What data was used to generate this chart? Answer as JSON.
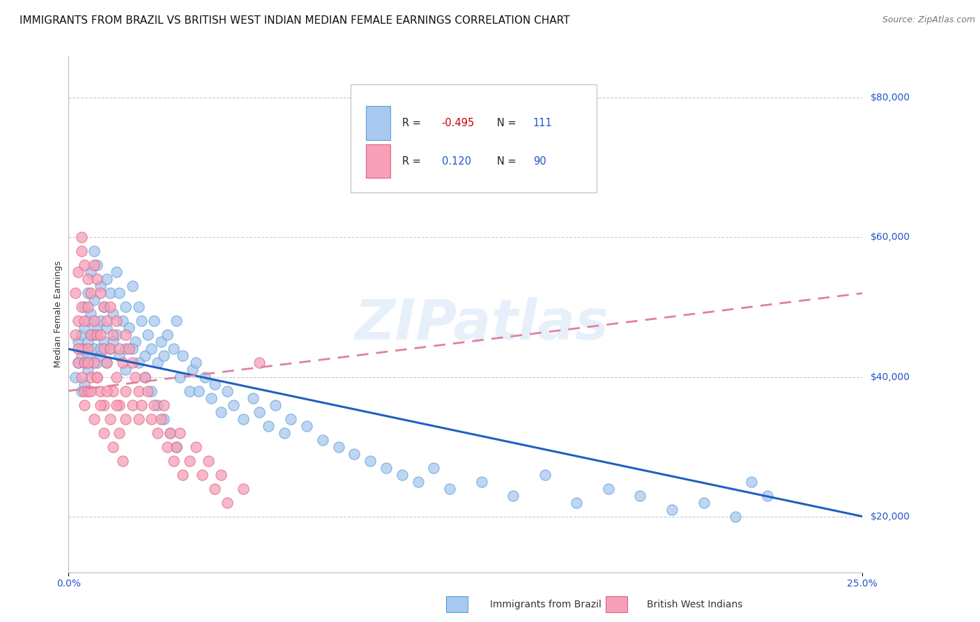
{
  "title": "IMMIGRANTS FROM BRAZIL VS BRITISH WEST INDIAN MEDIAN FEMALE EARNINGS CORRELATION CHART",
  "source": "Source: ZipAtlas.com",
  "ylabel": "Median Female Earnings",
  "y_ticks": [
    20000,
    40000,
    60000,
    80000
  ],
  "y_labels": [
    "$20,000",
    "$40,000",
    "$60,000",
    "$80,000"
  ],
  "xmin": 0.0,
  "xmax": 0.25,
  "ymin": 12000,
  "ymax": 86000,
  "brazil_color": "#a8c8f0",
  "brazil_edge_color": "#5a9fd4",
  "bwi_color": "#f5a0b8",
  "bwi_edge_color": "#e06080",
  "brazil_line_color": "#2060c0",
  "bwi_line_color": "#e080a0",
  "brazil_R": -0.495,
  "brazil_N": 111,
  "bwi_R": 0.12,
  "bwi_N": 90,
  "brazil_label": "Immigrants from Brazil",
  "bwi_label": "British West Indians",
  "watermark_text": "ZIPatlas",
  "title_fontsize": 11,
  "source_fontsize": 9,
  "axis_label_fontsize": 9,
  "tick_fontsize": 10,
  "background_color": "#ffffff",
  "grid_color": "#c8c8d8",
  "brazil_trend_x0": 0.0,
  "brazil_trend_x1": 0.25,
  "brazil_trend_y0": 44000,
  "brazil_trend_y1": 20000,
  "bwi_trend_x0": 0.0,
  "bwi_trend_x1": 0.25,
  "bwi_trend_y0": 38000,
  "bwi_trend_y1": 52000,
  "brazil_scatter_x": [
    0.002,
    0.003,
    0.003,
    0.004,
    0.004,
    0.004,
    0.005,
    0.005,
    0.005,
    0.005,
    0.005,
    0.006,
    0.006,
    0.006,
    0.006,
    0.007,
    0.007,
    0.007,
    0.007,
    0.008,
    0.008,
    0.008,
    0.009,
    0.009,
    0.009,
    0.01,
    0.01,
    0.01,
    0.011,
    0.011,
    0.012,
    0.012,
    0.013,
    0.013,
    0.014,
    0.015,
    0.015,
    0.016,
    0.017,
    0.018,
    0.018,
    0.019,
    0.02,
    0.021,
    0.022,
    0.023,
    0.024,
    0.025,
    0.026,
    0.027,
    0.028,
    0.029,
    0.03,
    0.031,
    0.033,
    0.034,
    0.035,
    0.036,
    0.038,
    0.039,
    0.04,
    0.041,
    0.043,
    0.045,
    0.046,
    0.048,
    0.05,
    0.052,
    0.055,
    0.058,
    0.06,
    0.063,
    0.065,
    0.068,
    0.07,
    0.075,
    0.08,
    0.085,
    0.09,
    0.095,
    0.1,
    0.105,
    0.11,
    0.115,
    0.12,
    0.13,
    0.14,
    0.15,
    0.16,
    0.17,
    0.18,
    0.19,
    0.2,
    0.21,
    0.215,
    0.22,
    0.006,
    0.008,
    0.01,
    0.012,
    0.014,
    0.016,
    0.018,
    0.02,
    0.022,
    0.024,
    0.026,
    0.028,
    0.03,
    0.032,
    0.034
  ],
  "brazil_scatter_y": [
    40000,
    42000,
    45000,
    43000,
    46000,
    38000,
    44000,
    47000,
    42000,
    50000,
    39000,
    48000,
    52000,
    45000,
    41000,
    55000,
    49000,
    43000,
    46000,
    58000,
    51000,
    44000,
    56000,
    47000,
    42000,
    53000,
    48000,
    43000,
    50000,
    45000,
    54000,
    47000,
    52000,
    44000,
    49000,
    55000,
    46000,
    52000,
    48000,
    50000,
    44000,
    47000,
    53000,
    45000,
    50000,
    48000,
    43000,
    46000,
    44000,
    48000,
    42000,
    45000,
    43000,
    46000,
    44000,
    48000,
    40000,
    43000,
    38000,
    41000,
    42000,
    38000,
    40000,
    37000,
    39000,
    35000,
    38000,
    36000,
    34000,
    37000,
    35000,
    33000,
    36000,
    32000,
    34000,
    33000,
    31000,
    30000,
    29000,
    28000,
    27000,
    26000,
    25000,
    27000,
    24000,
    25000,
    23000,
    26000,
    22000,
    24000,
    23000,
    21000,
    22000,
    20000,
    25000,
    23000,
    43000,
    46000,
    44000,
    42000,
    45000,
    43000,
    41000,
    44000,
    42000,
    40000,
    38000,
    36000,
    34000,
    32000,
    30000
  ],
  "bwi_scatter_x": [
    0.002,
    0.002,
    0.003,
    0.003,
    0.003,
    0.004,
    0.004,
    0.004,
    0.004,
    0.005,
    0.005,
    0.005,
    0.005,
    0.006,
    0.006,
    0.006,
    0.006,
    0.007,
    0.007,
    0.007,
    0.008,
    0.008,
    0.008,
    0.009,
    0.009,
    0.009,
    0.01,
    0.01,
    0.01,
    0.011,
    0.011,
    0.011,
    0.012,
    0.012,
    0.013,
    0.013,
    0.014,
    0.014,
    0.015,
    0.015,
    0.016,
    0.016,
    0.017,
    0.018,
    0.018,
    0.019,
    0.02,
    0.02,
    0.021,
    0.022,
    0.022,
    0.023,
    0.024,
    0.025,
    0.026,
    0.027,
    0.028,
    0.029,
    0.03,
    0.031,
    0.032,
    0.033,
    0.034,
    0.035,
    0.036,
    0.038,
    0.04,
    0.042,
    0.044,
    0.046,
    0.048,
    0.05,
    0.055,
    0.003,
    0.004,
    0.005,
    0.006,
    0.007,
    0.008,
    0.009,
    0.01,
    0.011,
    0.012,
    0.013,
    0.014,
    0.015,
    0.016,
    0.017,
    0.018,
    0.06
  ],
  "bwi_scatter_y": [
    52000,
    46000,
    55000,
    48000,
    42000,
    58000,
    50000,
    44000,
    60000,
    56000,
    48000,
    42000,
    38000,
    54000,
    50000,
    44000,
    38000,
    52000,
    46000,
    40000,
    56000,
    48000,
    42000,
    54000,
    46000,
    40000,
    52000,
    46000,
    38000,
    50000,
    44000,
    36000,
    48000,
    42000,
    50000,
    44000,
    46000,
    38000,
    48000,
    40000,
    44000,
    36000,
    42000,
    46000,
    38000,
    44000,
    42000,
    36000,
    40000,
    38000,
    34000,
    36000,
    40000,
    38000,
    34000,
    36000,
    32000,
    34000,
    36000,
    30000,
    32000,
    28000,
    30000,
    32000,
    26000,
    28000,
    30000,
    26000,
    28000,
    24000,
    26000,
    22000,
    24000,
    44000,
    40000,
    36000,
    42000,
    38000,
    34000,
    40000,
    36000,
    32000,
    38000,
    34000,
    30000,
    36000,
    32000,
    28000,
    34000,
    42000
  ]
}
